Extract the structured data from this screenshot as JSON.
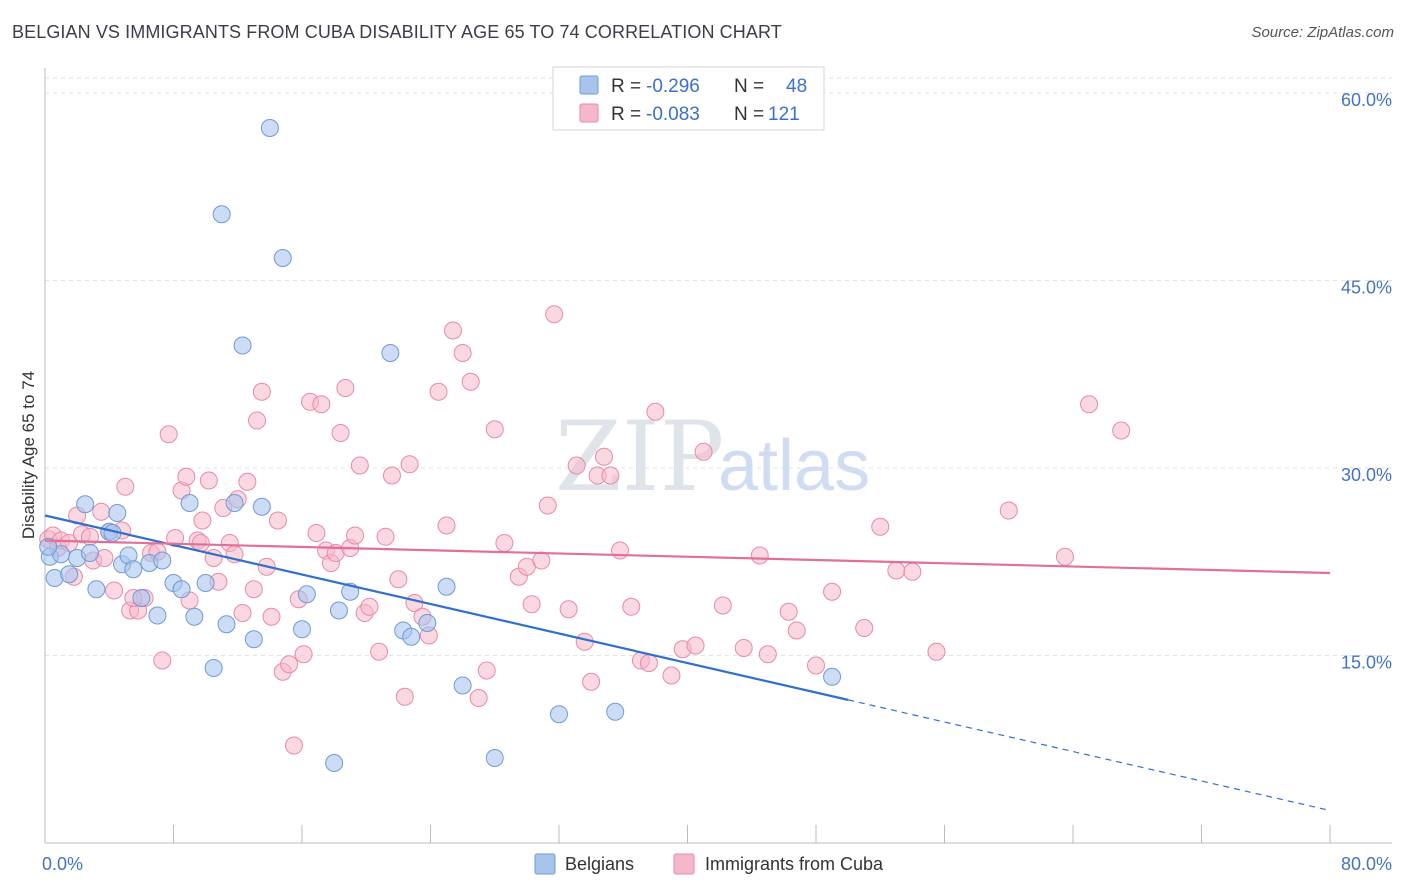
{
  "title": "BELGIAN VS IMMIGRANTS FROM CUBA DISABILITY AGE 65 TO 74 CORRELATION CHART",
  "source": "Source: ZipAtlas.com",
  "colors": {
    "belgians_fill": "#a9c4ec",
    "belgians_stroke": "#6f9bd8",
    "belgians_line": "#2f6fce",
    "cuba_fill": "#f5b8cb",
    "cuba_stroke": "#e88aa8",
    "cuba_line": "#e0709a",
    "axis_text": "#4472c4"
  },
  "legend": {
    "rows": [
      {
        "r_label": "R =",
        "r_value": "-0.296",
        "n_label": "N =",
        "n_value": "48"
      },
      {
        "r_label": "R =",
        "r_value": "-0.083",
        "n_label": "N =",
        "n_value": "121"
      }
    ]
  },
  "bottom_legend": {
    "belgians": "Belgians",
    "cuba": "Immigrants from Cuba"
  },
  "watermark": {
    "zip": "ZIP",
    "atlas": "atlas"
  },
  "chart_data": {
    "type": "scatter",
    "xlabel": "",
    "ylabel": "Disability Age 65 to 74",
    "xlim": [
      0,
      80
    ],
    "ylim": [
      0,
      62
    ],
    "x_tick_labels": [
      "0.0%",
      "80.0%"
    ],
    "y_ticks": [
      15,
      30,
      45,
      60
    ],
    "y_tick_labels": [
      "15.0%",
      "30.0%",
      "45.0%",
      "60.0%"
    ],
    "grid": true,
    "legend_position": "top-center",
    "series": [
      {
        "name": "Belgians",
        "trend": {
          "x0": 0,
          "y0": 26.2,
          "x1": 80,
          "y1": 2.6,
          "solid_until_x": 50
        },
        "points": [
          [
            0.3,
            22.9
          ],
          [
            0.6,
            21.2
          ],
          [
            1.0,
            23.1
          ],
          [
            1.5,
            21.5
          ],
          [
            2.0,
            22.8
          ],
          [
            2.5,
            27.1
          ],
          [
            2.8,
            23.2
          ],
          [
            3.2,
            20.3
          ],
          [
            4.0,
            24.9
          ],
          [
            4.5,
            26.4
          ],
          [
            4.8,
            22.3
          ],
          [
            5.2,
            23.0
          ],
          [
            5.5,
            21.9
          ],
          [
            6.0,
            19.6
          ],
          [
            6.5,
            22.4
          ],
          [
            7.0,
            18.2
          ],
          [
            7.3,
            22.6
          ],
          [
            8.0,
            20.8
          ],
          [
            8.5,
            20.3
          ],
          [
            9.0,
            27.2
          ],
          [
            9.3,
            18.1
          ],
          [
            10.0,
            20.8
          ],
          [
            10.5,
            14.0
          ],
          [
            11.0,
            50.3
          ],
          [
            11.3,
            17.5
          ],
          [
            11.8,
            27.2
          ],
          [
            12.3,
            39.8
          ],
          [
            13.0,
            16.3
          ],
          [
            13.5,
            26.9
          ],
          [
            14.0,
            57.2
          ],
          [
            14.8,
            46.8
          ],
          [
            16.0,
            17.1
          ],
          [
            16.3,
            19.9
          ],
          [
            18.0,
            6.4
          ],
          [
            18.3,
            18.6
          ],
          [
            19.0,
            20.1
          ],
          [
            21.5,
            39.2
          ],
          [
            22.3,
            17.0
          ],
          [
            22.8,
            16.5
          ],
          [
            23.8,
            17.6
          ],
          [
            25.0,
            20.5
          ],
          [
            26.0,
            12.6
          ],
          [
            28.0,
            6.8
          ],
          [
            32.0,
            10.3
          ],
          [
            35.5,
            10.5
          ],
          [
            49.0,
            13.3
          ],
          [
            0.2,
            23.7
          ],
          [
            4.2,
            24.8
          ]
        ]
      },
      {
        "name": "Immigrants from Cuba",
        "trend": {
          "x0": 0,
          "y0": 24.2,
          "x1": 80,
          "y1": 21.6
        },
        "points": [
          [
            0.2,
            24.3
          ],
          [
            0.5,
            24.6
          ],
          [
            0.8,
            23.6
          ],
          [
            1.0,
            24.2
          ],
          [
            1.5,
            24.0
          ],
          [
            1.8,
            21.3
          ],
          [
            2.0,
            26.2
          ],
          [
            2.3,
            24.7
          ],
          [
            2.8,
            24.5
          ],
          [
            3.0,
            22.6
          ],
          [
            3.5,
            26.5
          ],
          [
            4.0,
            24.9
          ],
          [
            4.3,
            20.2
          ],
          [
            4.8,
            25.0
          ],
          [
            5.0,
            28.5
          ],
          [
            5.3,
            18.6
          ],
          [
            5.8,
            18.6
          ],
          [
            6.2,
            19.6
          ],
          [
            6.6,
            23.2
          ],
          [
            7.0,
            23.3
          ],
          [
            7.3,
            14.6
          ],
          [
            7.7,
            32.7
          ],
          [
            8.1,
            24.4
          ],
          [
            8.5,
            28.2
          ],
          [
            8.8,
            29.3
          ],
          [
            9.0,
            19.4
          ],
          [
            9.5,
            24.2
          ],
          [
            9.8,
            25.8
          ],
          [
            10.2,
            29.0
          ],
          [
            10.5,
            22.8
          ],
          [
            10.8,
            20.9
          ],
          [
            11.1,
            26.8
          ],
          [
            11.5,
            24.0
          ],
          [
            11.8,
            23.1
          ],
          [
            12.0,
            27.5
          ],
          [
            12.3,
            18.4
          ],
          [
            12.6,
            28.9
          ],
          [
            13.0,
            20.3
          ],
          [
            13.2,
            33.8
          ],
          [
            13.5,
            36.1
          ],
          [
            13.8,
            22.1
          ],
          [
            14.1,
            18.1
          ],
          [
            14.5,
            25.8
          ],
          [
            14.8,
            13.7
          ],
          [
            15.2,
            14.3
          ],
          [
            15.5,
            7.8
          ],
          [
            15.8,
            19.5
          ],
          [
            16.1,
            15.1
          ],
          [
            16.5,
            35.3
          ],
          [
            16.9,
            24.8
          ],
          [
            17.2,
            35.1
          ],
          [
            17.5,
            23.4
          ],
          [
            17.8,
            22.4
          ],
          [
            18.1,
            23.2
          ],
          [
            18.4,
            32.8
          ],
          [
            18.7,
            36.4
          ],
          [
            19.0,
            23.6
          ],
          [
            19.3,
            24.6
          ],
          [
            19.6,
            30.2
          ],
          [
            19.9,
            18.4
          ],
          [
            20.2,
            18.9
          ],
          [
            20.8,
            15.3
          ],
          [
            21.2,
            24.5
          ],
          [
            21.6,
            29.4
          ],
          [
            22.0,
            21.1
          ],
          [
            22.4,
            11.7
          ],
          [
            22.7,
            30.3
          ],
          [
            23.0,
            19.2
          ],
          [
            23.5,
            18.1
          ],
          [
            23.9,
            16.6
          ],
          [
            24.5,
            36.1
          ],
          [
            25.0,
            25.4
          ],
          [
            25.4,
            41.0
          ],
          [
            26.0,
            39.2
          ],
          [
            26.5,
            36.9
          ],
          [
            27.0,
            11.6
          ],
          [
            27.5,
            13.8
          ],
          [
            28.0,
            33.1
          ],
          [
            28.6,
            24.0
          ],
          [
            29.5,
            21.3
          ],
          [
            30.0,
            22.1
          ],
          [
            30.3,
            19.1
          ],
          [
            30.9,
            22.6
          ],
          [
            31.3,
            27.0
          ],
          [
            31.7,
            42.3
          ],
          [
            32.6,
            18.7
          ],
          [
            33.1,
            30.2
          ],
          [
            33.6,
            16.1
          ],
          [
            34.0,
            12.9
          ],
          [
            34.4,
            29.4
          ],
          [
            34.8,
            30.9
          ],
          [
            35.2,
            29.4
          ],
          [
            35.8,
            23.4
          ],
          [
            36.5,
            18.9
          ],
          [
            37.1,
            14.6
          ],
          [
            37.6,
            14.4
          ],
          [
            38.0,
            34.5
          ],
          [
            39.0,
            13.4
          ],
          [
            39.7,
            15.5
          ],
          [
            40.5,
            15.8
          ],
          [
            41.0,
            31.3
          ],
          [
            42.2,
            19.0
          ],
          [
            43.5,
            15.6
          ],
          [
            44.5,
            23.0
          ],
          [
            45.0,
            15.1
          ],
          [
            46.3,
            18.5
          ],
          [
            46.8,
            17.0
          ],
          [
            48.0,
            14.2
          ],
          [
            49.0,
            20.1
          ],
          [
            51.0,
            17.2
          ],
          [
            52.0,
            25.3
          ],
          [
            53.0,
            21.8
          ],
          [
            54.0,
            21.7
          ],
          [
            55.5,
            15.3
          ],
          [
            60.0,
            26.6
          ],
          [
            63.5,
            22.9
          ],
          [
            65.0,
            35.1
          ],
          [
            67.0,
            33.0
          ],
          [
            5.5,
            19.6
          ],
          [
            9.7,
            24.0
          ],
          [
            3.7,
            22.8
          ]
        ]
      }
    ]
  }
}
